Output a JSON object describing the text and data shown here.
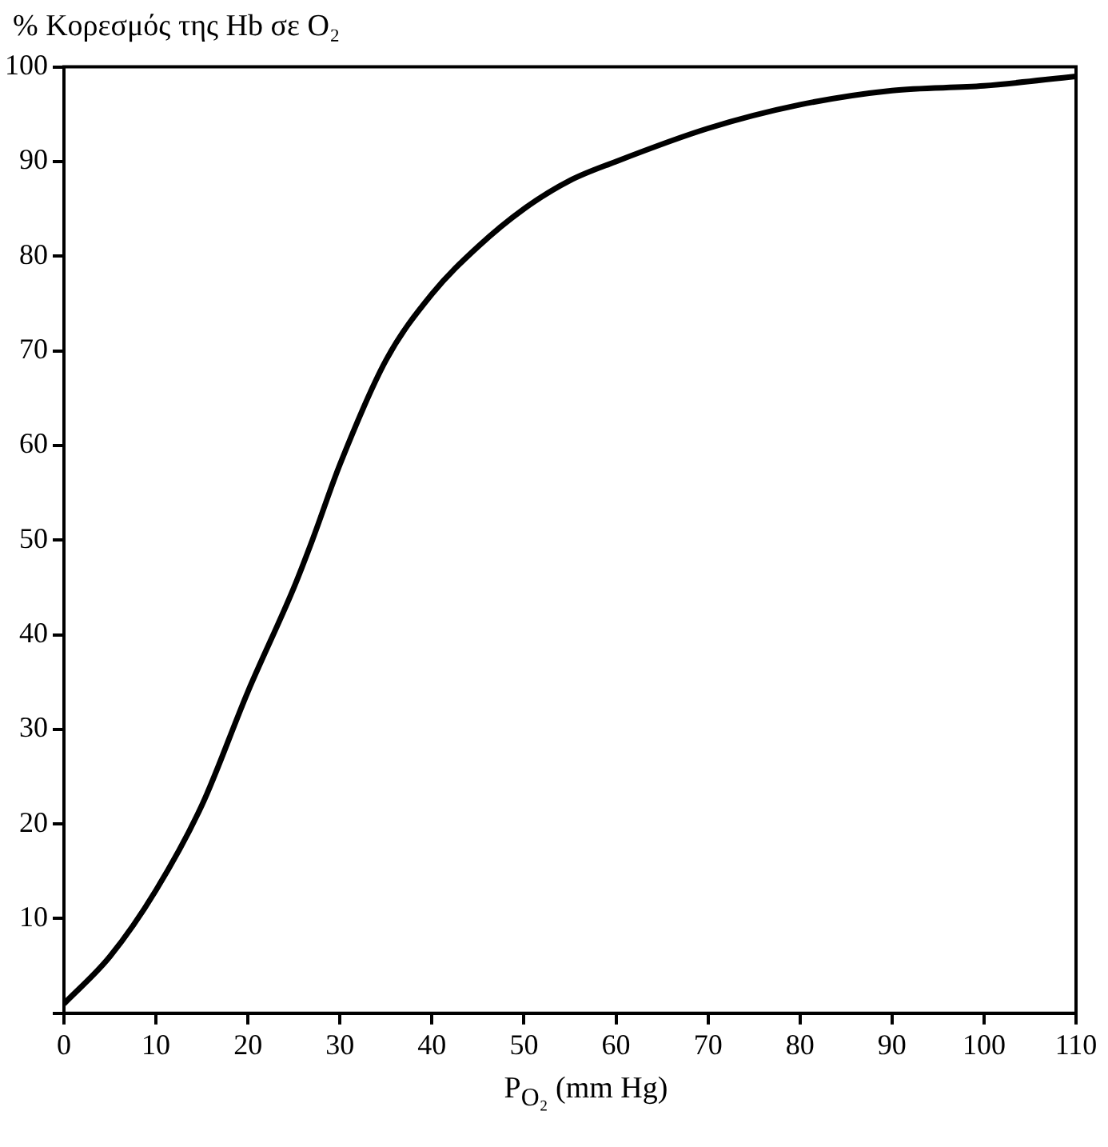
{
  "chart_data": {
    "type": "line",
    "ylabel": "% Κορεσμός της Hb σε O₂",
    "xlabel": "P$_{O₂}$ (mm Hg)",
    "x": [
      0,
      5,
      10,
      15,
      20,
      25,
      27,
      30,
      35,
      40,
      45,
      50,
      55,
      60,
      70,
      80,
      90,
      100,
      110
    ],
    "series": [
      {
        "color": "#000000",
        "values": [
          1,
          6,
          13,
          22,
          34,
          45,
          50,
          58,
          69,
          76,
          81,
          85,
          88,
          90,
          93.5,
          96,
          97.5,
          98,
          99
        ]
      }
    ],
    "xlim": [
      0,
      110
    ],
    "xticks": [
      0,
      10,
      20,
      30,
      40,
      50,
      60,
      70,
      80,
      90,
      100,
      110
    ],
    "ylim": [
      0,
      100
    ],
    "yticks": [
      {
        "value": 0,
        "label": null
      },
      10,
      20,
      30,
      40,
      50,
      60,
      70,
      80,
      90,
      100
    ],
    "grid": false,
    "legend": false,
    "marker": "none",
    "line_style": "solid"
  }
}
